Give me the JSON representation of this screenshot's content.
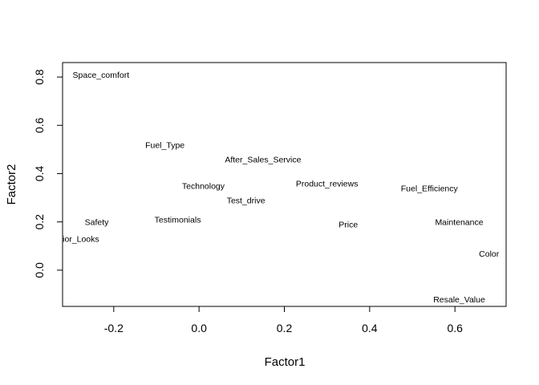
{
  "chart_data": {
    "type": "scatter",
    "title": "",
    "xlabel": "Factor1",
    "ylabel": "Factor2",
    "xlim": [
      -0.32,
      0.72
    ],
    "ylim": [
      -0.15,
      0.86
    ],
    "xticks": [
      -0.2,
      0.0,
      0.2,
      0.4,
      0.6
    ],
    "xtick_labels": [
      "-0.2",
      "0.0",
      "0.2",
      "0.4",
      "0.6"
    ],
    "yticks": [
      0.0,
      0.2,
      0.4,
      0.6,
      0.8
    ],
    "ytick_labels": [
      "0.0",
      "0.2",
      "0.4",
      "0.6",
      "0.8"
    ],
    "grid": false,
    "points": [
      {
        "label": "Space_comfort",
        "x": -0.23,
        "y": 0.81
      },
      {
        "label": "Fuel_Type",
        "x": -0.08,
        "y": 0.52
      },
      {
        "label": "After_Sales_Service",
        "x": 0.15,
        "y": 0.46
      },
      {
        "label": "Technology",
        "x": 0.01,
        "y": 0.35
      },
      {
        "label": "Product_reviews",
        "x": 0.3,
        "y": 0.36
      },
      {
        "label": "Fuel_Efficiency",
        "x": 0.54,
        "y": 0.34
      },
      {
        "label": "Test_drive",
        "x": 0.11,
        "y": 0.29
      },
      {
        "label": "Safety",
        "x": -0.24,
        "y": 0.2
      },
      {
        "label": "Testimonials",
        "x": -0.05,
        "y": 0.21
      },
      {
        "label": "Price",
        "x": 0.35,
        "y": 0.19
      },
      {
        "label": "Maintenance",
        "x": 0.61,
        "y": 0.2
      },
      {
        "label": "Exterior_Looks",
        "x": -0.3,
        "y": 0.13
      },
      {
        "label": "Color",
        "x": 0.68,
        "y": 0.07
      },
      {
        "label": "Resale_Value",
        "x": 0.61,
        "y": -0.12
      }
    ]
  }
}
